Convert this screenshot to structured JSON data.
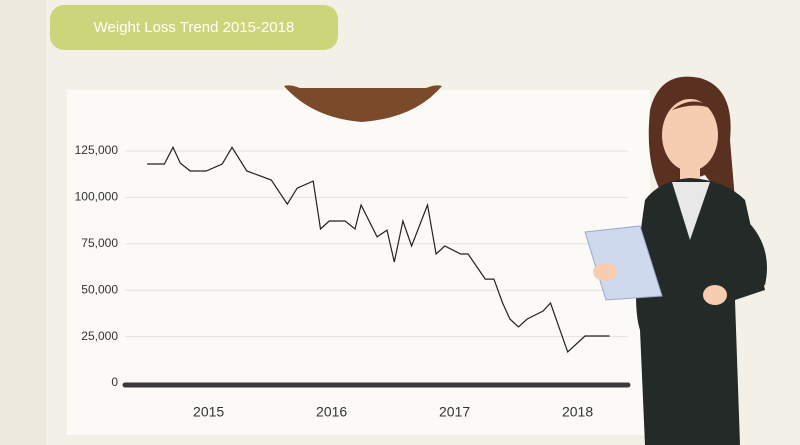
{
  "chart_data": {
    "type": "line",
    "title": "Weight Loss Trend 2015-2018",
    "x": [
      2014.5,
      2014.64,
      2014.71,
      2014.77,
      2014.85,
      2014.98,
      2015.11,
      2015.19,
      2015.31,
      2015.51,
      2015.64,
      2015.72,
      2015.85,
      2015.91,
      2015.98,
      2016.11,
      2016.19,
      2016.24,
      2016.37,
      2016.45,
      2016.51,
      2016.58,
      2016.65,
      2016.78,
      2016.85,
      2016.92,
      2017.05,
      2017.11,
      2017.25,
      2017.32,
      2017.39,
      2017.45,
      2017.52,
      2017.59,
      2017.72,
      2017.78,
      2017.92,
      2018.06,
      2018.26
    ],
    "values": [
      118000,
      118000,
      127000,
      118500,
      114200,
      114200,
      118000,
      127000,
      114200,
      109400,
      96400,
      105000,
      108800,
      83000,
      87300,
      87300,
      83000,
      95900,
      78700,
      82400,
      65200,
      87300,
      73800,
      95900,
      69500,
      73800,
      69500,
      69500,
      56000,
      56000,
      43100,
      34500,
      30200,
      34500,
      38800,
      43100,
      16700,
      25300,
      25300
    ],
    "color": "#222222",
    "xlim": [
      2014.32,
      2018.41
    ],
    "xticks": [
      2015,
      2016,
      2017,
      2018
    ],
    "ylim": [
      0,
      130000
    ],
    "yticks": [
      0,
      {
        "value": 25000,
        "label": "25,000"
      },
      {
        "value": 50000,
        "label": "50,000"
      },
      {
        "value": 75000,
        "label": "75,000"
      },
      {
        "value": 100000,
        "label": "100,000"
      },
      {
        "value": 125000,
        "label": "125,000"
      }
    ],
    "grid": true
  }
}
